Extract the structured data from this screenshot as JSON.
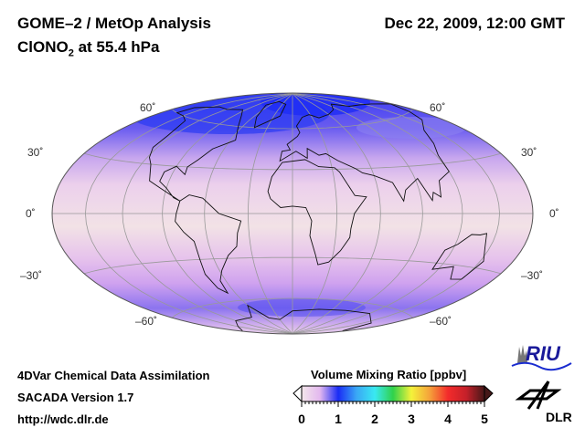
{
  "header": {
    "title": "GOME–2 / MetOp Analysis",
    "species": "ClONO",
    "species_sub": "2",
    "level": " at 55.4 hPa",
    "datetime": "Dec 22, 2009, 12:00 GMT"
  },
  "map": {
    "projection": "Hammer",
    "lat_labels": [
      "60˚",
      "30˚",
      "0˚",
      "–30˚",
      "–60˚"
    ]
  },
  "footer": {
    "line1": "4DVar Chemical Data Assimilation",
    "line2": "SACADA Version 1.7",
    "line3": "http://wdc.dlr.de"
  },
  "colorbar": {
    "title": "Volume Mixing Ratio [ppbv]",
    "ticks": [
      "0",
      "1",
      "2",
      "3",
      "4",
      "5"
    ],
    "min": 0,
    "max": 5,
    "colors": [
      "#f3e6ea",
      "#e3b8ef",
      "#1a2cf5",
      "#3aa7f5",
      "#39e9f2",
      "#30d24a",
      "#f4f23a",
      "#f5a23a",
      "#f32b2b",
      "#c5202a",
      "#451818"
    ]
  },
  "logos": {
    "riu": "RIU",
    "dlr": "DLR"
  }
}
